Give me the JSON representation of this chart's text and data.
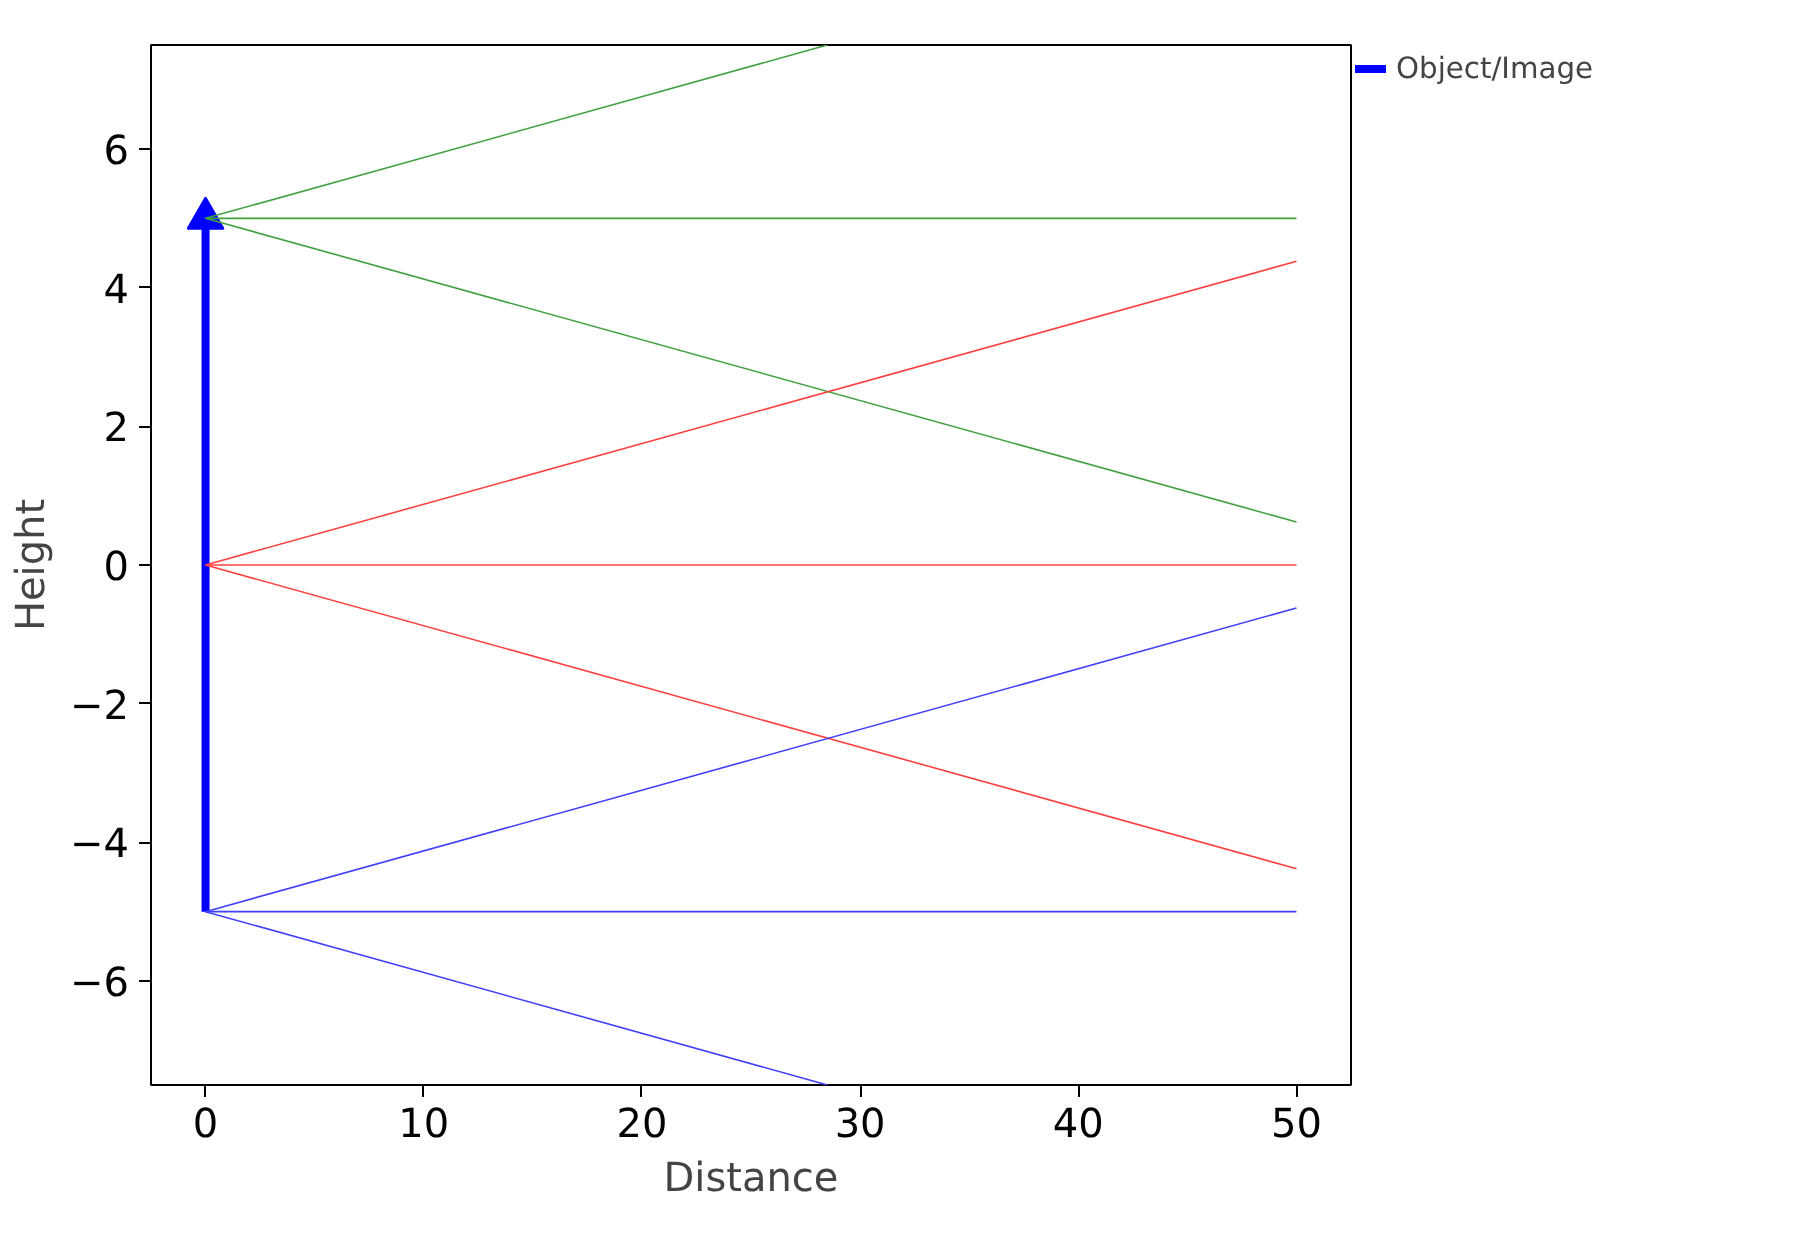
{
  "chart_data": {
    "type": "line",
    "xlabel": "Distance",
    "ylabel": "Height",
    "xlim": [
      -2.5,
      52.5
    ],
    "ylim": [
      -7.5,
      7.5
    ],
    "xticks": [
      0,
      10,
      20,
      30,
      40,
      50
    ],
    "yticks": [
      {
        "value": -6,
        "label": "−6"
      },
      {
        "value": -4,
        "label": "−4"
      },
      {
        "value": -2,
        "label": "−2"
      },
      0,
      2,
      4,
      6
    ],
    "grid": false,
    "legend": "top right",
    "marker": "none",
    "line_style": "solid",
    "series": [
      {
        "color": "#40a040",
        "x": [
          0,
          28.5
        ],
        "values": [
          5,
          7.5
        ]
      },
      {
        "color": "#40a040",
        "x": [
          0,
          50
        ],
        "values": [
          5,
          5
        ]
      },
      {
        "color": "#40a040",
        "x": [
          0,
          50
        ],
        "values": [
          5,
          0.62
        ]
      },
      {
        "color": "#ff4040",
        "x": [
          0,
          50
        ],
        "values": [
          0,
          4.38
        ]
      },
      {
        "color": "#ff4040",
        "x": [
          0,
          50
        ],
        "values": [
          0,
          0
        ]
      },
      {
        "color": "#ff4040",
        "x": [
          0,
          50
        ],
        "values": [
          0,
          -4.38
        ]
      },
      {
        "color": "#4040ff",
        "x": [
          0,
          50
        ],
        "values": [
          -5,
          -0.62
        ]
      },
      {
        "color": "#4040ff",
        "x": [
          0,
          50
        ],
        "values": [
          -5,
          -5
        ]
      },
      {
        "color": "#4040ff",
        "x": [
          0,
          28.5
        ],
        "values": [
          -5,
          -7.5
        ]
      },
      {
        "marker": "triangle",
        "name": "Object/Image",
        "color": "#0000ff",
        "x": [
          0,
          0
        ],
        "values": [
          -5,
          5
        ]
      }
    ]
  }
}
